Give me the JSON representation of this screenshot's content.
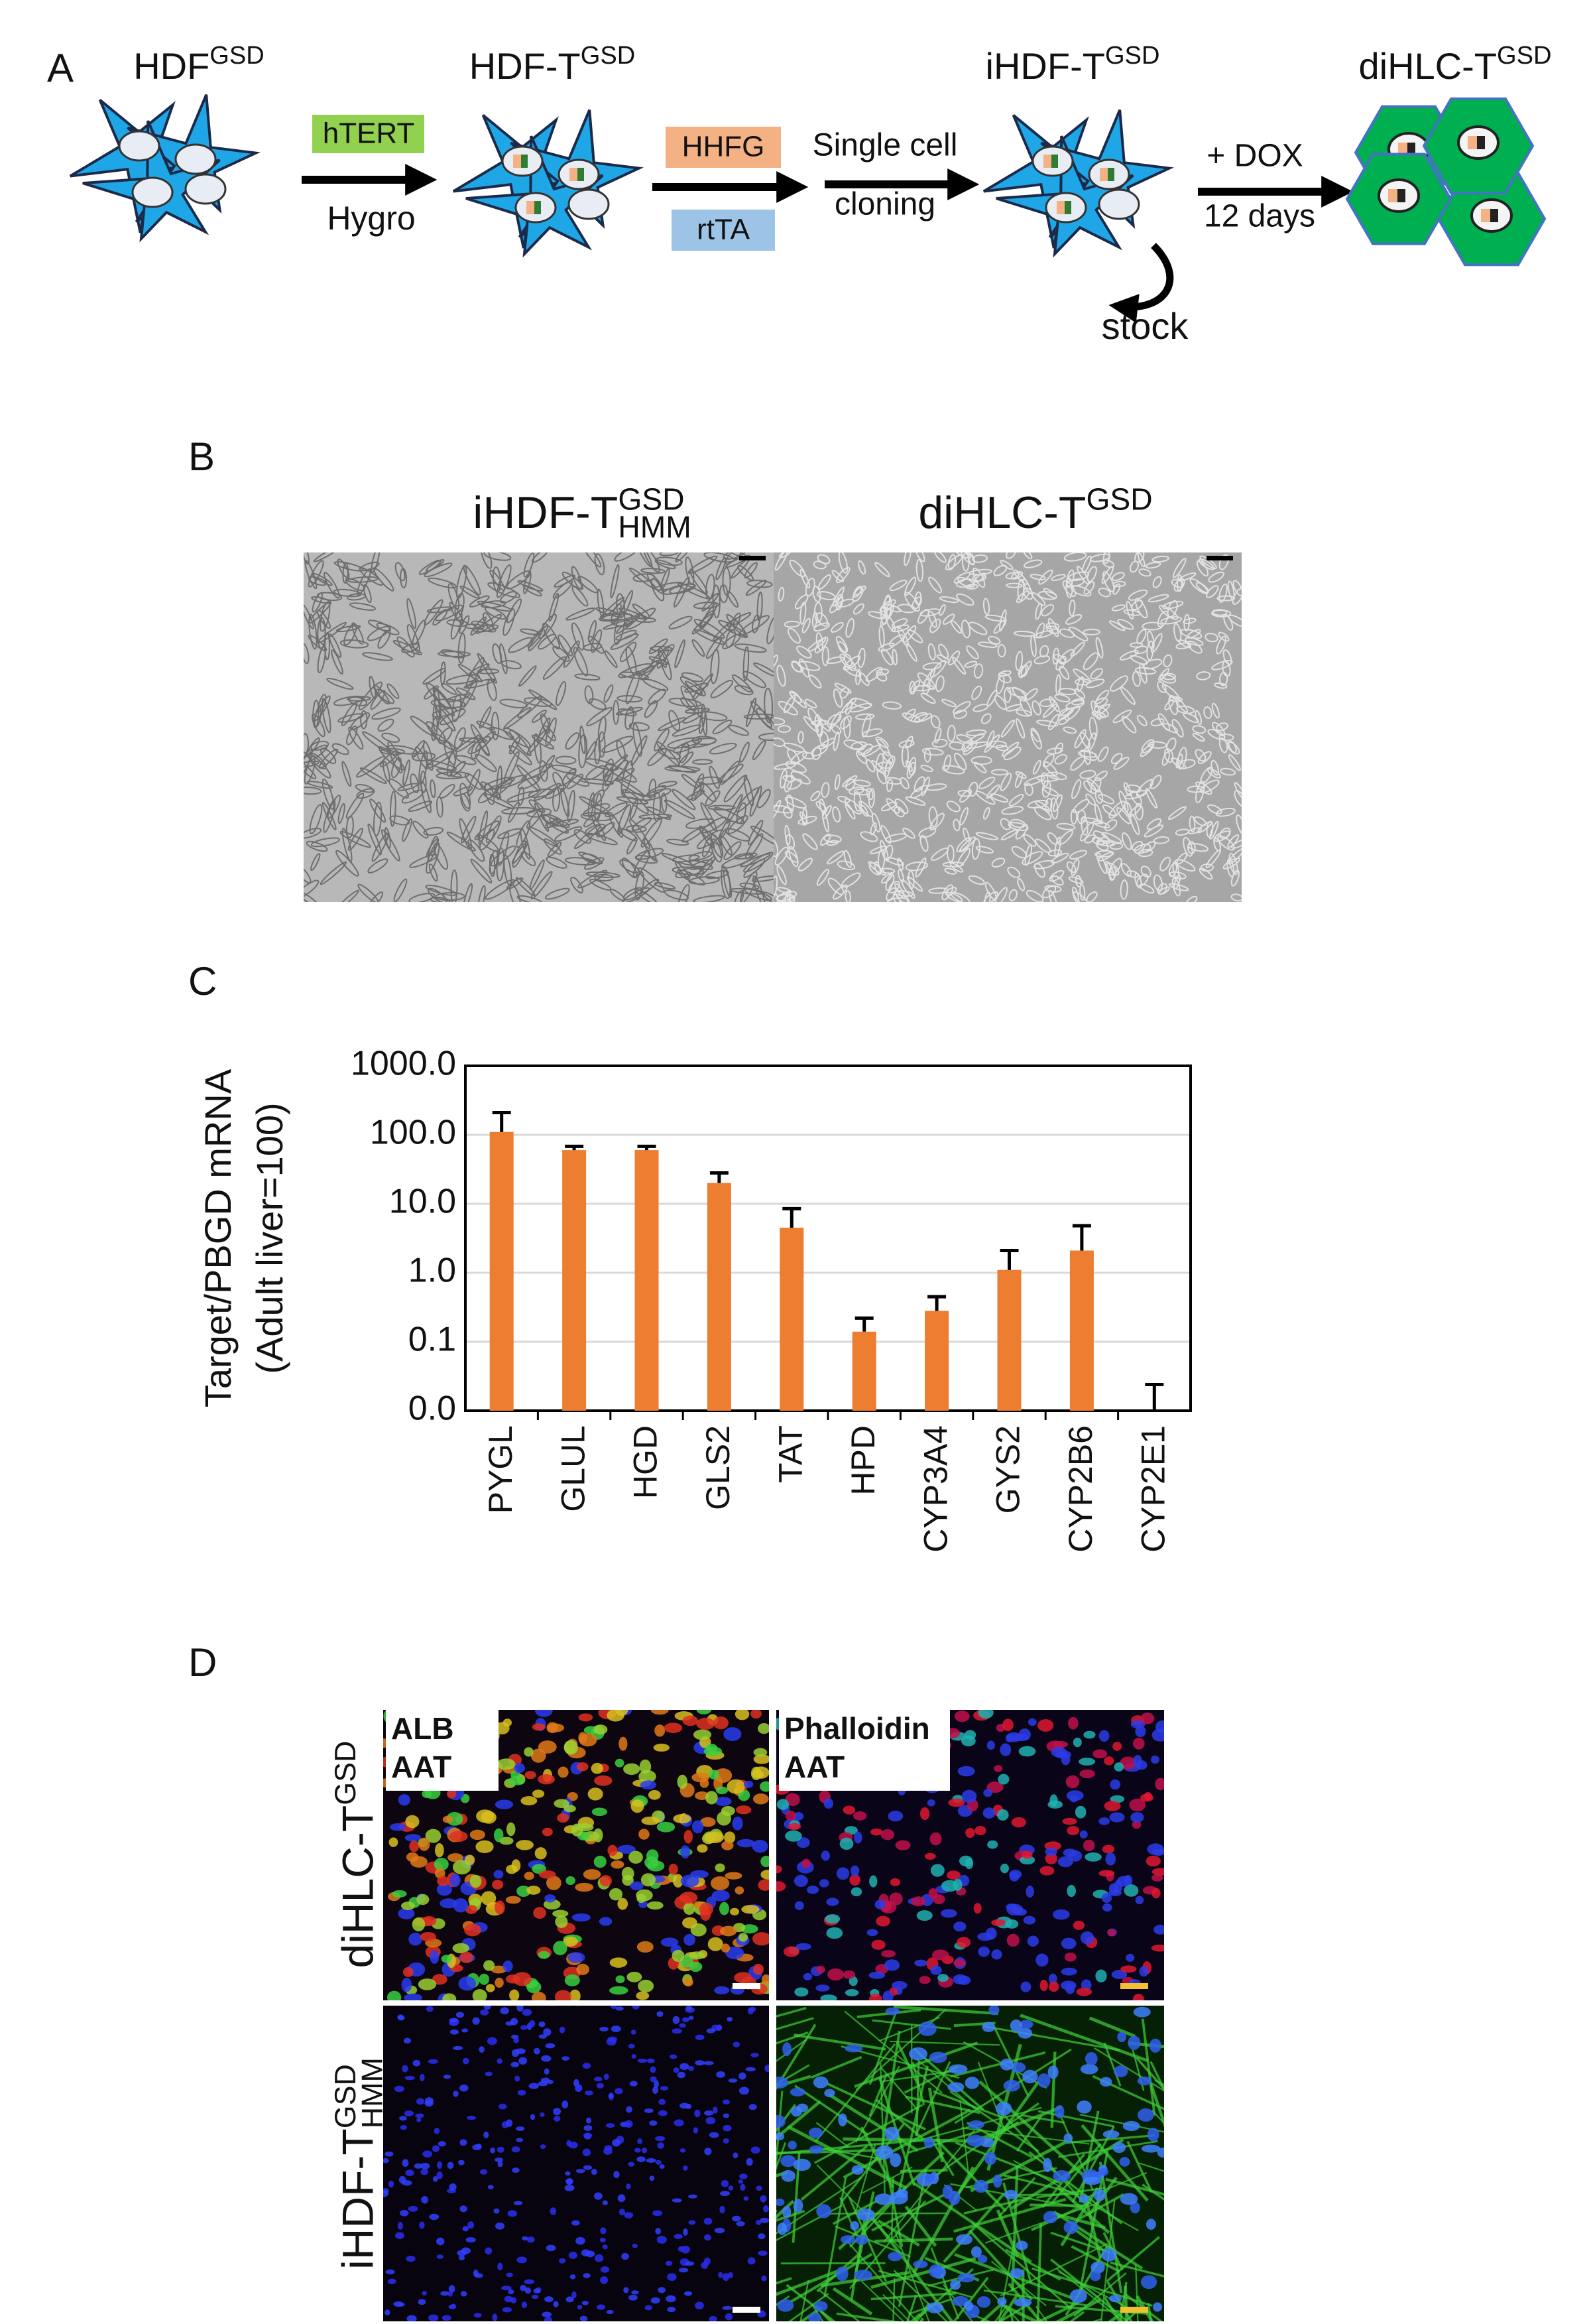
{
  "panel_a": {
    "label": "A",
    "stages": [
      {
        "base": "HDF",
        "sup": "GSD"
      },
      {
        "base": "HDF-T",
        "sup": "GSD"
      },
      {
        "base": "iHDF-T",
        "sup": "GSD"
      },
      {
        "base": "diHLC-T",
        "sup": "GSD"
      }
    ],
    "boxes": {
      "htert": "hTERT",
      "hhfg": "HHFG",
      "rtta": "rtTA"
    },
    "texts": {
      "hygro": "Hygro",
      "single_cell": "Single cell",
      "cloning": "cloning",
      "dox": "+ DOX",
      "days": "12 days",
      "stock": "stock"
    }
  },
  "panel_b": {
    "label": "B",
    "titles": [
      {
        "base": "iHDF-T",
        "sup": "GSD",
        "sub": "HMM"
      },
      {
        "base": "diHLC-T",
        "sup": "GSD"
      }
    ]
  },
  "panel_c": {
    "label": "C"
  },
  "chart_data": {
    "type": "bar",
    "y_label": [
      "Target/PBGD mRNA",
      "(Adult liver=100)"
    ],
    "categories": [
      "PYGL",
      "GLUL",
      "HGD",
      "GLS2",
      "TAT",
      "HPD",
      "CYP3A4",
      "GYS2",
      "CYP2B6",
      "CYP2E1"
    ],
    "values": [
      110,
      60,
      60,
      20,
      4.5,
      0.14,
      0.28,
      1.1,
      2.1,
      0.01
    ],
    "errors": [
      100,
      8,
      8,
      8,
      4,
      0.08,
      0.17,
      1,
      2.7,
      0.014
    ],
    "color": "#ed7d31",
    "log_scale": true,
    "grid": true,
    "ylim": [
      0.01,
      1000
    ],
    "yticks": [
      {
        "value": 0.01,
        "label": "0.0"
      },
      {
        "value": 0.1,
        "label": "0.1"
      },
      {
        "value": 1,
        "label": "1.0"
      },
      {
        "value": 10,
        "label": "10.0"
      },
      {
        "value": 100,
        "label": "100.0"
      },
      {
        "value": 1000,
        "label": "1000.0"
      }
    ]
  },
  "panel_d": {
    "label": "D",
    "rows": [
      {
        "base": "diHLC-T",
        "sup": "GSD"
      },
      {
        "base": "iHDF-T",
        "sup": "GSD",
        "sub": "HMM"
      }
    ],
    "stains": [
      [
        "ALB",
        "AAT"
      ],
      [
        "Phalloidin",
        "AAT"
      ]
    ]
  }
}
